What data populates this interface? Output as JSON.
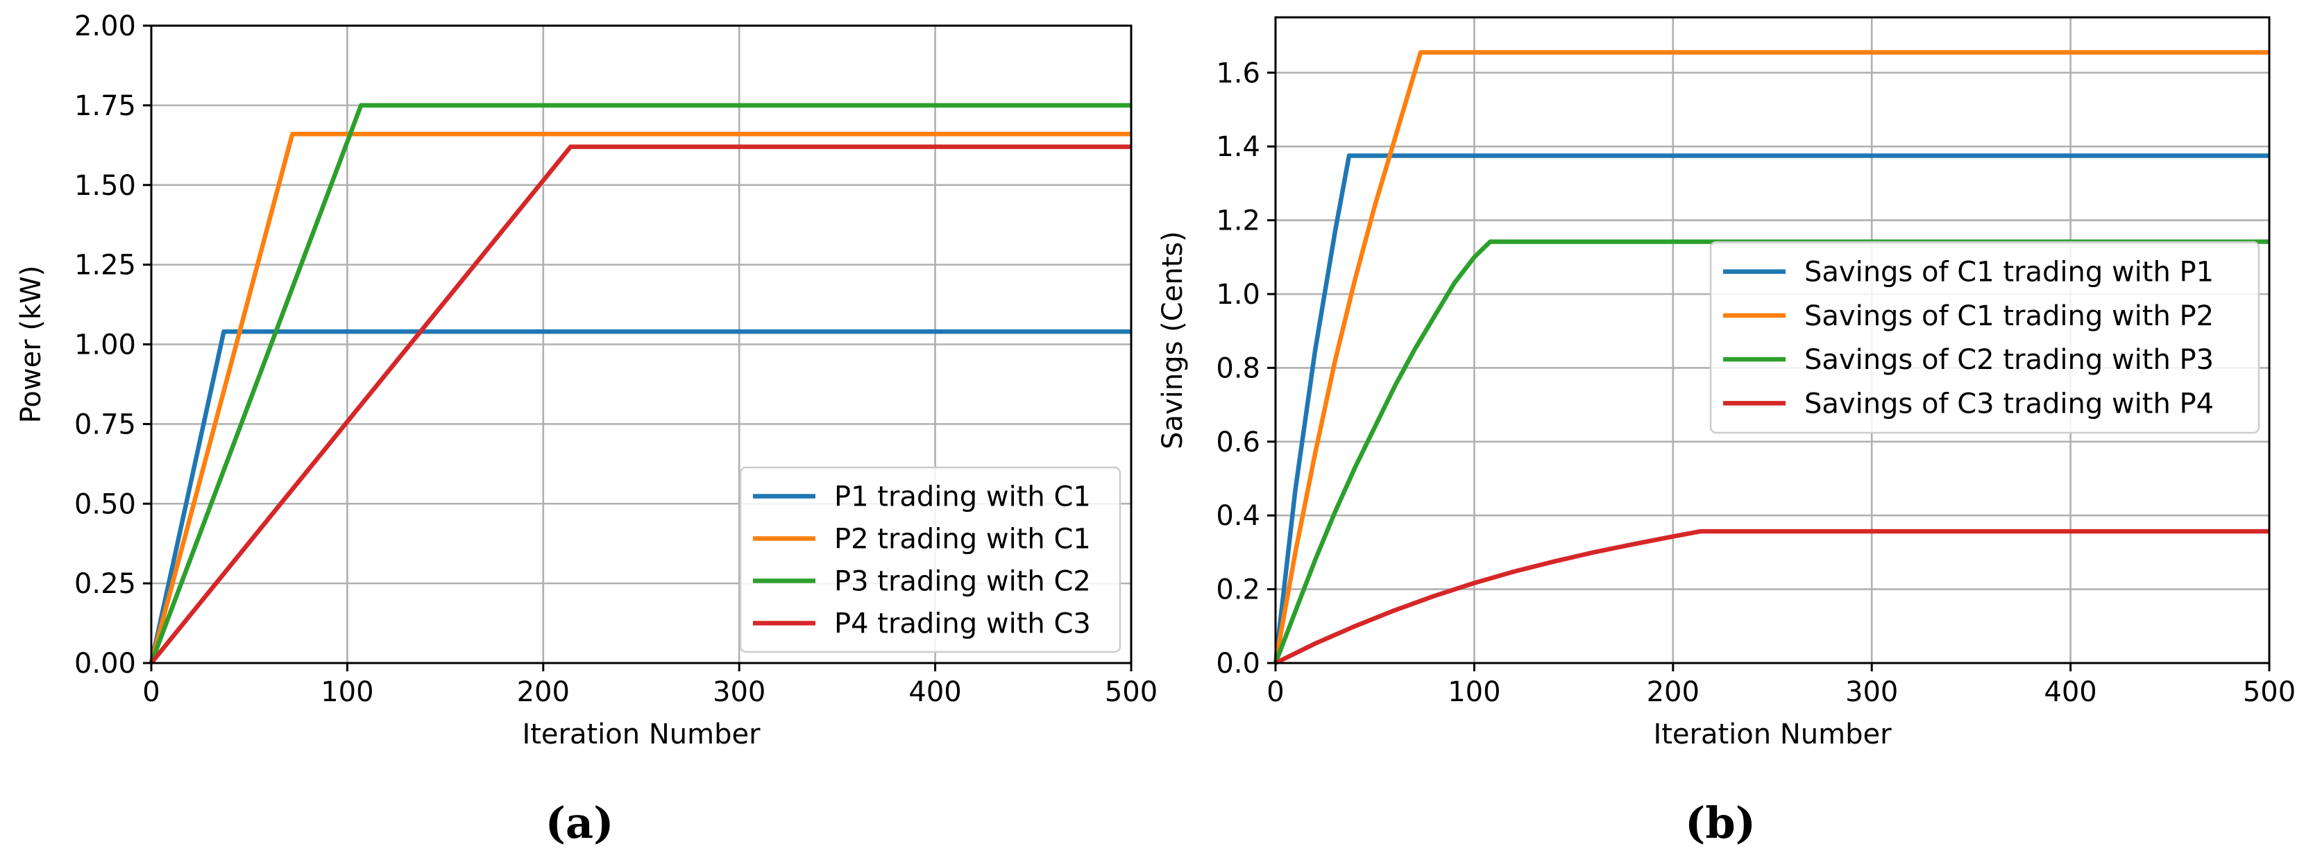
{
  "chart_data": [
    {
      "type": "line",
      "panel_label": "(a)",
      "xlabel": "Iteration Number",
      "ylabel": "Power (kW)",
      "xlim": [
        0,
        500
      ],
      "ylim": [
        0,
        2.0
      ],
      "xticks": [
        0,
        100,
        200,
        300,
        400,
        500
      ],
      "yticks": [
        0.0,
        0.25,
        0.5,
        0.75,
        1.0,
        1.25,
        1.5,
        1.75,
        2.0
      ],
      "ytick_labels": [
        "0.00",
        "0.25",
        "0.50",
        "0.75",
        "1.00",
        "1.25",
        "1.50",
        "1.75",
        "2.00"
      ],
      "grid": true,
      "legend_position": "lower-right",
      "series": [
        {
          "name": "P1 trading with C1",
          "color": "#1f77b4",
          "x": [
            0,
            37,
            500
          ],
          "y": [
            0,
            1.04,
            1.04
          ]
        },
        {
          "name": "P2 trading with C1",
          "color": "#ff7f0e",
          "x": [
            0,
            72,
            500
          ],
          "y": [
            0,
            1.66,
            1.66
          ]
        },
        {
          "name": "P3 trading with C2",
          "color": "#2ca02c",
          "x": [
            0,
            107,
            500
          ],
          "y": [
            0,
            1.75,
            1.75
          ]
        },
        {
          "name": "P4 trading with C3",
          "color": "#d62728",
          "x": [
            0,
            214,
            500
          ],
          "y": [
            0,
            1.62,
            1.62
          ]
        }
      ]
    },
    {
      "type": "line",
      "panel_label": "(b)",
      "xlabel": "Iteration Number",
      "ylabel": "Savings (Cents)",
      "xlim": [
        0,
        500
      ],
      "ylim": [
        0,
        1.75
      ],
      "xticks": [
        0,
        100,
        200,
        300,
        400,
        500
      ],
      "yticks": [
        0.0,
        0.2,
        0.4,
        0.6,
        0.8,
        1.0,
        1.2,
        1.4,
        1.6
      ],
      "ytick_labels": [
        "0.0",
        "0.2",
        "0.4",
        "0.6",
        "0.8",
        "1.0",
        "1.2",
        "1.4",
        "1.6"
      ],
      "grid": true,
      "legend_position": "upper-right",
      "series": [
        {
          "name": "Savings of C1 trading with P1",
          "color": "#1f77b4",
          "x": [
            0,
            10,
            20,
            30,
            37,
            500
          ],
          "y": [
            0,
            0.47,
            0.85,
            1.17,
            1.375,
            1.375
          ]
        },
        {
          "name": "Savings of C1 trading with P2",
          "color": "#ff7f0e",
          "x": [
            0,
            10,
            20,
            30,
            40,
            50,
            60,
            73,
            500
          ],
          "y": [
            0,
            0.3,
            0.57,
            0.82,
            1.04,
            1.24,
            1.42,
            1.655,
            1.655
          ]
        },
        {
          "name": "Savings of C2 trading with P3",
          "color": "#2ca02c",
          "x": [
            0,
            10,
            20,
            30,
            40,
            50,
            60,
            70,
            80,
            90,
            100,
            108,
            500
          ],
          "y": [
            0,
            0.14,
            0.28,
            0.41,
            0.53,
            0.64,
            0.75,
            0.85,
            0.94,
            1.03,
            1.1,
            1.142,
            1.142
          ]
        },
        {
          "name": "Savings of C3 trading with P4",
          "color": "#d62728",
          "x": [
            0,
            20,
            40,
            60,
            80,
            100,
            120,
            140,
            160,
            180,
            200,
            214,
            500
          ],
          "y": [
            0,
            0.053,
            0.1,
            0.143,
            0.182,
            0.217,
            0.248,
            0.275,
            0.3,
            0.322,
            0.343,
            0.357,
            0.357
          ]
        }
      ]
    }
  ]
}
